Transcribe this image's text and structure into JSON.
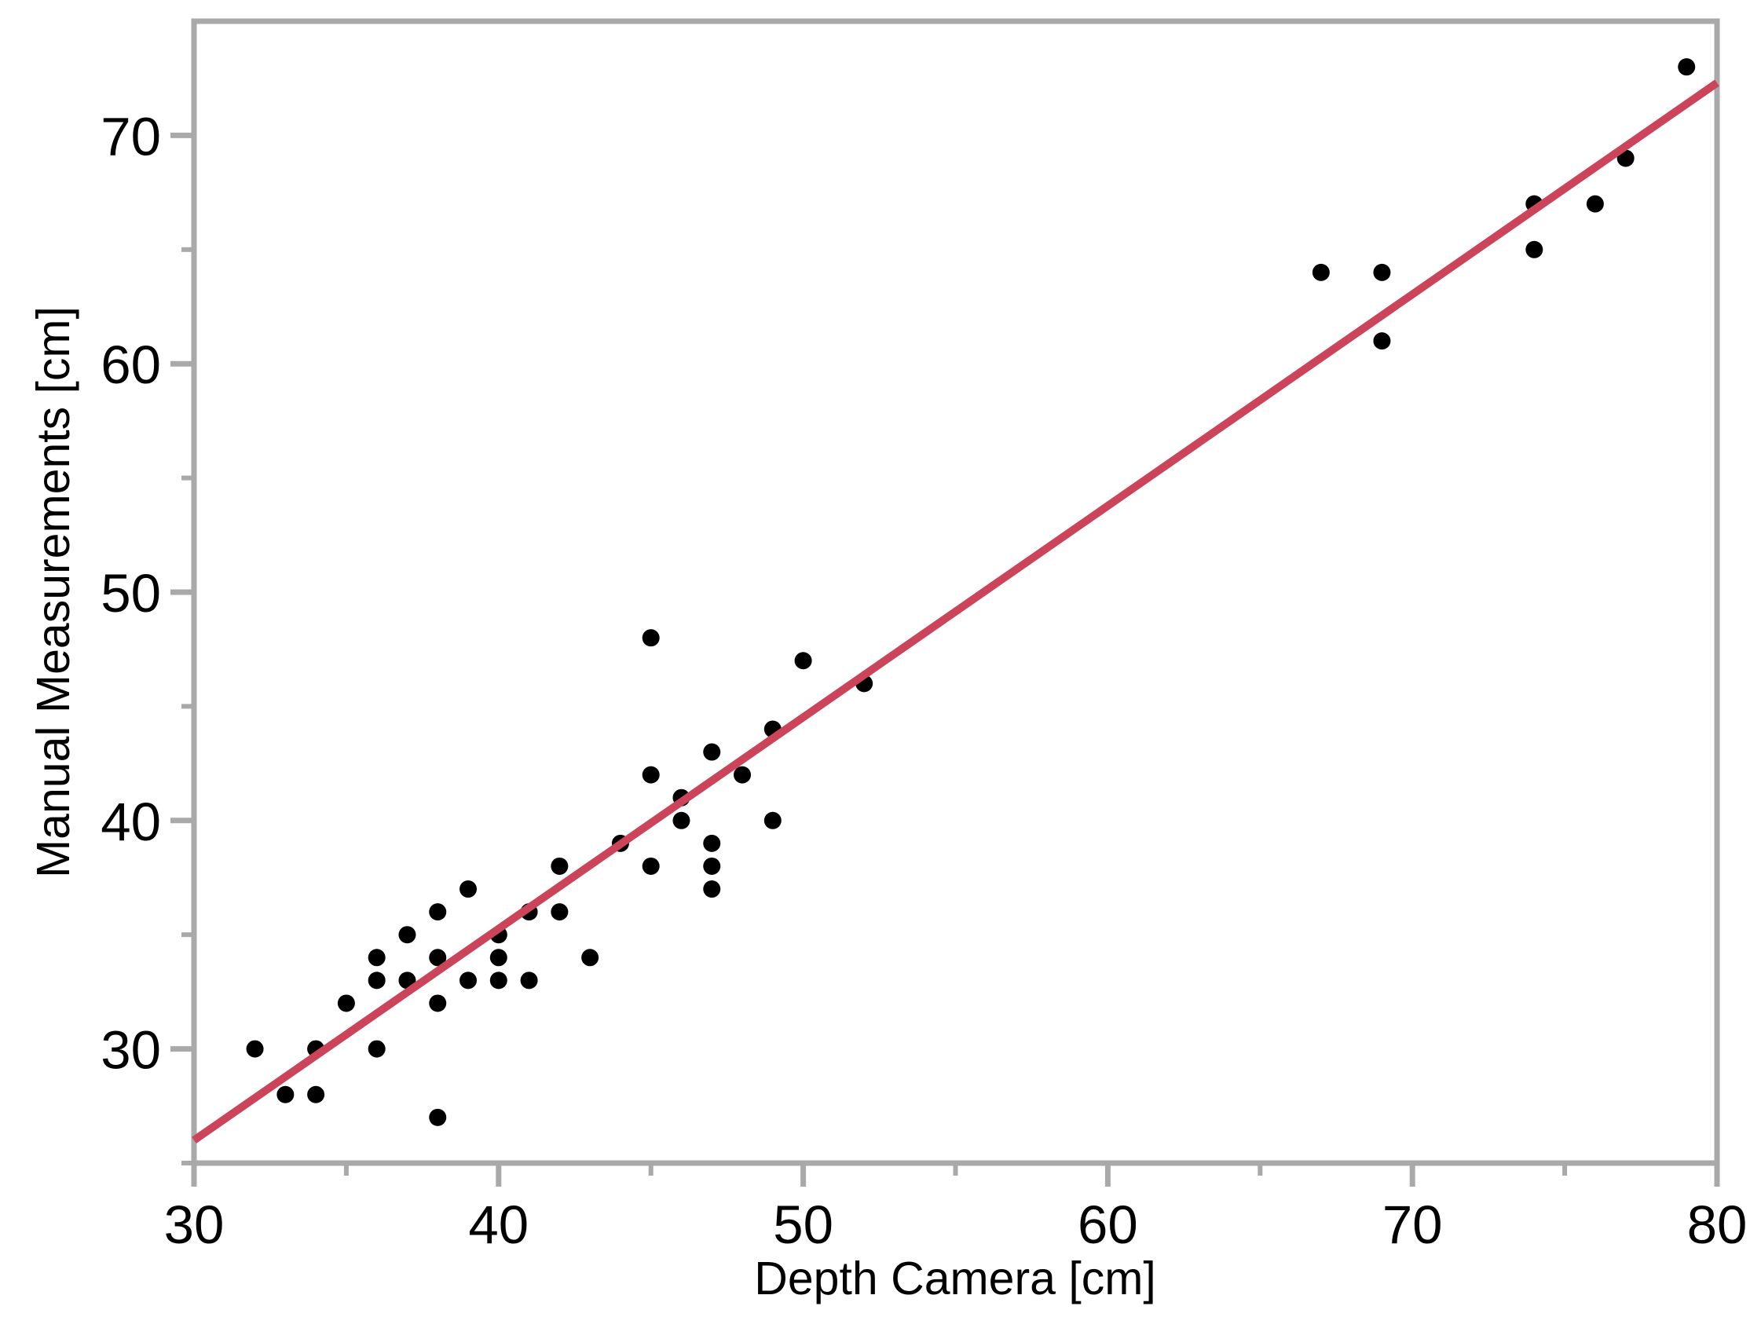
{
  "figure": {
    "description": "Scatter plot comparing depth-camera distance readings to manual measurements with a linear fit line"
  },
  "chart_data": {
    "type": "scatter",
    "title": "",
    "xlabel": "Depth Camera [cm]",
    "ylabel": "Manual Measurements [cm]",
    "xlim": [
      30,
      80
    ],
    "ylim": [
      25,
      75
    ],
    "x_major_ticks": [
      30,
      40,
      50,
      60,
      70,
      80
    ],
    "x_minor_ticks": [
      35,
      45,
      55,
      65,
      75
    ],
    "y_major_ticks": [
      30,
      40,
      50,
      60,
      70
    ],
    "y_minor_ticks": [
      25,
      35,
      45,
      55,
      65
    ],
    "grid": false,
    "legend": false,
    "points": [
      [
        32,
        30
      ],
      [
        33,
        28
      ],
      [
        34,
        28
      ],
      [
        34,
        30
      ],
      [
        35,
        32
      ],
      [
        36,
        30
      ],
      [
        36,
        33
      ],
      [
        36,
        34
      ],
      [
        37,
        33
      ],
      [
        37,
        35
      ],
      [
        38,
        27
      ],
      [
        38,
        32
      ],
      [
        38,
        34
      ],
      [
        38,
        36
      ],
      [
        39,
        33
      ],
      [
        39,
        37
      ],
      [
        40,
        33
      ],
      [
        40,
        34
      ],
      [
        40,
        35
      ],
      [
        41,
        33
      ],
      [
        41,
        36
      ],
      [
        42,
        36
      ],
      [
        42,
        38
      ],
      [
        43,
        34
      ],
      [
        44,
        39
      ],
      [
        45,
        38
      ],
      [
        45,
        42
      ],
      [
        45,
        48
      ],
      [
        46,
        40
      ],
      [
        46,
        41
      ],
      [
        47,
        37
      ],
      [
        47,
        38
      ],
      [
        47,
        39
      ],
      [
        47,
        43
      ],
      [
        48,
        42
      ],
      [
        49,
        40
      ],
      [
        49,
        44
      ],
      [
        50,
        47
      ],
      [
        52,
        46
      ],
      [
        67,
        64
      ],
      [
        69,
        61
      ],
      [
        69,
        64
      ],
      [
        74,
        65
      ],
      [
        74,
        67
      ],
      [
        76,
        67
      ],
      [
        77,
        69
      ],
      [
        79,
        73
      ]
    ],
    "fit_line": {
      "x": [
        30,
        80
      ],
      "y": [
        26.0,
        72.3
      ]
    },
    "colors": {
      "point": "#000000",
      "fit_line": "#cb4459",
      "axis": "#a9a9a9",
      "text": "#000000",
      "background": "#ffffff"
    }
  }
}
